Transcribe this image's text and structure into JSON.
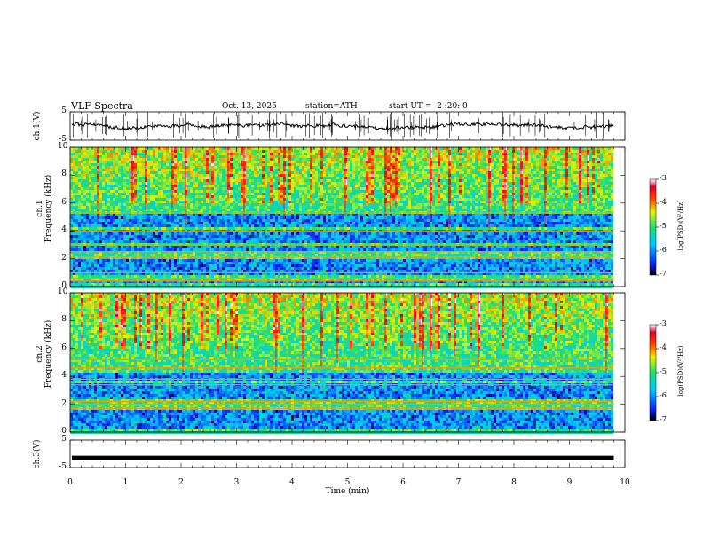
{
  "header": {
    "title": "VLF Spectra",
    "date": "Oct. 13, 2025",
    "station": "station=ATH",
    "start": "start UT =  2 :20: 0"
  },
  "chart_data": [
    {
      "type": "line",
      "name": "ch1-waveform",
      "ylabel": "ch.1(V)",
      "ylim": [
        -5,
        5
      ],
      "yticks": [
        "5",
        "-5"
      ],
      "xlim": [
        0,
        10
      ],
      "baseline": 0
    },
    {
      "type": "heatmap",
      "name": "ch1-spectrogram",
      "ylabel": "ch.1\nFrequency (kHz)",
      "ylabel_lines": [
        "ch.1",
        "Frequency (kHz)"
      ],
      "ylim": [
        0,
        10
      ],
      "yticks": [
        "0",
        "2",
        "4",
        "6",
        "8",
        "10"
      ],
      "xlim": [
        0,
        10
      ],
      "data_end_min": 9.8,
      "colorbar": {
        "label": "log(PSD)(V²/Hz)",
        "ticks": [
          "-3",
          "-4",
          "-5",
          "-6",
          "-7"
        ],
        "range": [
          -7,
          -3
        ]
      },
      "bands_khz": [
        [
          0.3,
          0.5
        ],
        [
          1.0,
          2.0
        ],
        [
          2.6,
          3.0
        ],
        [
          3.2,
          4.2
        ],
        [
          4.4,
          5.4
        ]
      ],
      "lines_khz": [
        0.4,
        0.6,
        1.0,
        2.1,
        2.5,
        3.0,
        4.0,
        5.3
      ]
    },
    {
      "type": "heatmap",
      "name": "ch2-spectrogram",
      "ylabel": "ch.2\nFrequency (kHz)",
      "ylabel_lines": [
        "ch.2",
        "Frequency (kHz)"
      ],
      "ylim": [
        0,
        10
      ],
      "yticks": [
        "0",
        "2",
        "4",
        "6",
        "8",
        "10"
      ],
      "xlim": [
        0,
        10
      ],
      "data_end_min": 9.8,
      "colorbar": {
        "label": "log(PSD)(V²/Hz)",
        "ticks": [
          "-3",
          "-4",
          "-5",
          "-6",
          "-7"
        ],
        "range": [
          -7,
          -3
        ]
      },
      "bands_khz": [
        [
          0.4,
          1.6
        ],
        [
          2.4,
          3.6
        ],
        [
          3.8,
          4.4
        ]
      ],
      "lines_khz": [
        1.7,
        2.0,
        2.2,
        3.4,
        3.8,
        4.6,
        5.2
      ]
    },
    {
      "type": "line",
      "name": "ch3-waveform",
      "ylabel": "ch.3(V)",
      "ylim": [
        -5,
        5
      ],
      "yticks": [
        "5",
        "-5"
      ],
      "xlim": [
        0,
        10
      ],
      "xlabel": "Time (min)",
      "xticks": [
        "0",
        "1",
        "2",
        "3",
        "4",
        "5",
        "6",
        "7",
        "8",
        "9",
        "10"
      ],
      "baseline": -1.5
    }
  ]
}
